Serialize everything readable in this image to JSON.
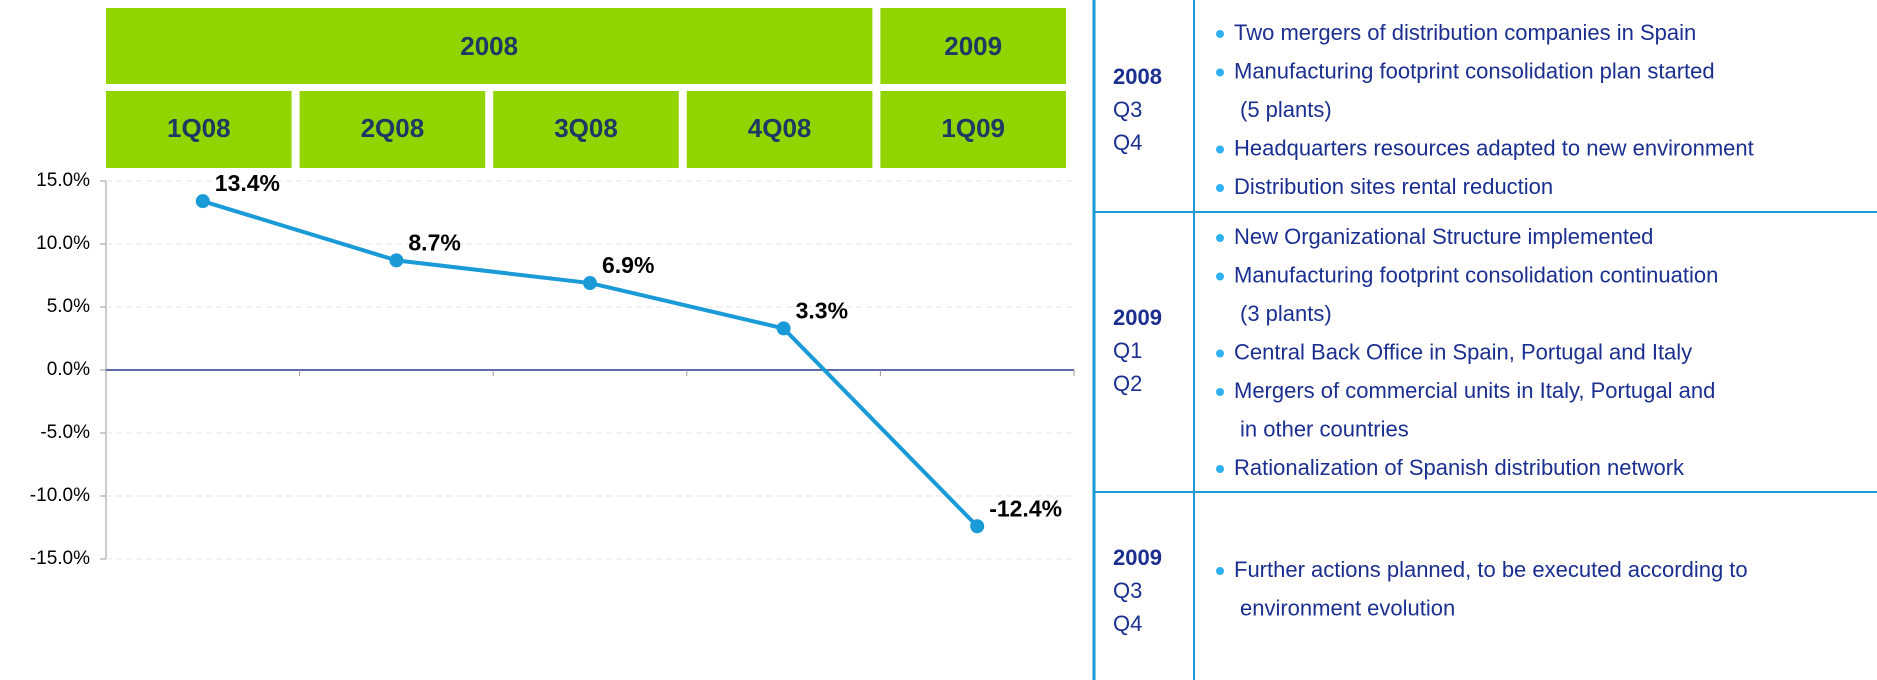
{
  "chart_data": {
    "type": "line",
    "groups": [
      "2008",
      "2009"
    ],
    "categories": [
      "1Q08",
      "2Q08",
      "3Q08",
      "4Q08",
      "1Q09"
    ],
    "values": [
      13.4,
      8.7,
      6.9,
      3.3,
      -12.4
    ],
    "value_labels": [
      "13.4%",
      "8.7%",
      "6.9%",
      "3.3%",
      "-12.4%"
    ],
    "color": "#1a9ad6",
    "ylim": [
      -15,
      15
    ],
    "yticks": [
      {
        "value": -15,
        "label": "-15.0%"
      },
      {
        "value": -10,
        "label": "-10.0%"
      },
      {
        "value": -5,
        "label": "-5.0%"
      },
      {
        "value": 0,
        "label": "0.0%"
      },
      {
        "value": 5,
        "label": "5.0%"
      },
      {
        "value": 10,
        "label": "10.0%"
      },
      {
        "value": 15,
        "label": "15.0%"
      }
    ],
    "grid": true
  },
  "table": {
    "rows": [
      {
        "year": "2008",
        "quarters": [
          "Q3",
          "Q4"
        ],
        "items": [
          [
            "Two mergers of distribution companies in Spain"
          ],
          [
            "Manufacturing footprint consolidation plan started",
            "(5 plants)"
          ],
          [
            "Headquarters resources adapted to new environment"
          ],
          [
            "Distribution sites rental reduction"
          ]
        ]
      },
      {
        "year": "2009",
        "quarters": [
          "Q1",
          "Q2"
        ],
        "items": [
          [
            "New Organizational Structure implemented"
          ],
          [
            "Manufacturing footprint consolidation continuation",
            "(3 plants)"
          ],
          [
            "Central Back Office in Spain, Portugal and Italy"
          ],
          [
            "Mergers of commercial units in Italy, Portugal and",
            "in other countries"
          ],
          [
            "Rationalization of Spanish distribution network"
          ]
        ]
      },
      {
        "year": "2009",
        "quarters": [
          "Q3",
          "Q4"
        ],
        "items": [
          [
            "Further actions planned, to be executed according to",
            "environment evolution"
          ]
        ]
      }
    ]
  }
}
